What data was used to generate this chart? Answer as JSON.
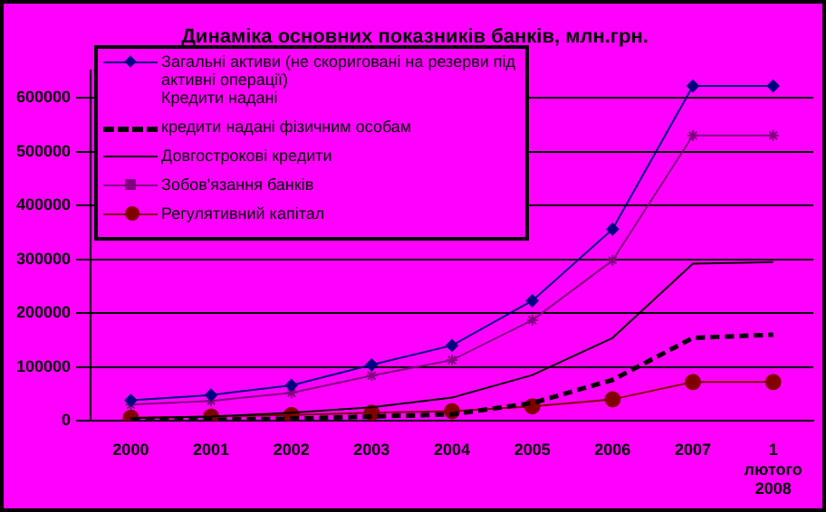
{
  "chart_data": {
    "type": "line",
    "title": "Динаміка основних показників банків, млн.грн.",
    "categories": [
      "2000",
      "2001",
      "2002",
      "2003",
      "2004",
      "2005",
      "2006",
      "2007",
      "1 лютого 2008"
    ],
    "series": [
      {
        "name": "Загальні активи (не скориговані на резерви під активні операції)",
        "color": "#000080",
        "marker": "diamond",
        "values": [
          38000,
          48000,
          66000,
          104000,
          140000,
          223000,
          356000,
          622000,
          622000
        ]
      },
      {
        "name": "кредити надані фізичним особам",
        "color": "#000000",
        "marker": "none",
        "line_style": "dashed",
        "values": [
          1000,
          2000,
          4000,
          8000,
          12000,
          33000,
          76000,
          154000,
          160000
        ]
      },
      {
        "name": "Довгострокові кредити",
        "color": "#000000",
        "marker": "none",
        "values": [
          5000,
          8000,
          15000,
          25000,
          43000,
          85000,
          154000,
          292000,
          295000
        ]
      },
      {
        "name": "Зобов'язання банків",
        "color": "#800080",
        "marker": "cross",
        "values": [
          30000,
          37000,
          52000,
          84000,
          113000,
          187000,
          298000,
          530000,
          530000
        ]
      },
      {
        "name": "Регулятивний капітал",
        "color": "#800000",
        "marker": "circle",
        "values": [
          6000,
          8000,
          11000,
          15000,
          18000,
          27000,
          40000,
          72000,
          72000
        ]
      }
    ],
    "ylim": [
      0,
      650000
    ],
    "yticks": [
      0,
      100000,
      200000,
      300000,
      400000,
      500000,
      600000
    ],
    "grid": "y",
    "legend": "top left",
    "annotations": [
      "Кредити надані"
    ]
  }
}
